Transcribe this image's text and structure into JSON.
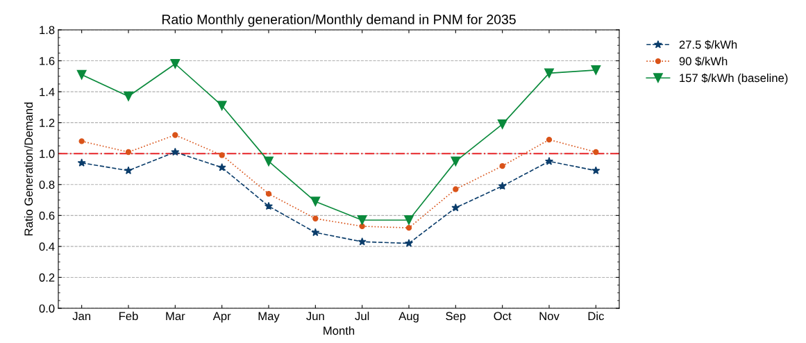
{
  "chart_data": {
    "type": "line",
    "title": "Ratio Monthly generation/Monthly demand in PNM for 2035",
    "xlabel": "Month",
    "ylabel": "Ratio Generation/Demand",
    "categories": [
      "Jan",
      "Feb",
      "Mar",
      "Apr",
      "May",
      "Jun",
      "Jul",
      "Aug",
      "Sep",
      "Oct",
      "Nov",
      "Dic"
    ],
    "series": [
      {
        "name": "27.5 $/kWh",
        "color": "#0b3d6b",
        "marker": "star",
        "line_style": "dashed",
        "values": [
          0.94,
          0.89,
          1.01,
          0.91,
          0.66,
          0.49,
          0.43,
          0.42,
          0.65,
          0.79,
          0.95,
          0.89
        ]
      },
      {
        "name": "90 $/kWh",
        "color": "#d95319",
        "marker": "circle",
        "line_style": "dotted",
        "values": [
          1.08,
          1.01,
          1.12,
          0.99,
          0.74,
          0.58,
          0.53,
          0.52,
          0.77,
          0.92,
          1.09,
          1.01
        ]
      },
      {
        "name": "157 $/kWh (baseline)",
        "color": "#0a8a3c",
        "marker": "triangle",
        "line_style": "solid",
        "values": [
          1.51,
          1.37,
          1.58,
          1.31,
          0.95,
          0.69,
          0.57,
          0.57,
          0.95,
          1.19,
          1.52,
          1.54
        ]
      }
    ],
    "ylim": [
      0,
      1.8
    ],
    "yticks": [
      {
        "value": 0,
        "label": "0.0"
      },
      0.2,
      0.4,
      0.6,
      0.8,
      {
        "value": 1,
        "label": "1.0"
      },
      1.2,
      1.4,
      1.6,
      1.8
    ],
    "ref_lines": [
      {
        "axis": "y",
        "value": 1.0,
        "color": "#e8262a",
        "line_style": "dashdot"
      }
    ],
    "grid": "y",
    "legend": "right"
  }
}
